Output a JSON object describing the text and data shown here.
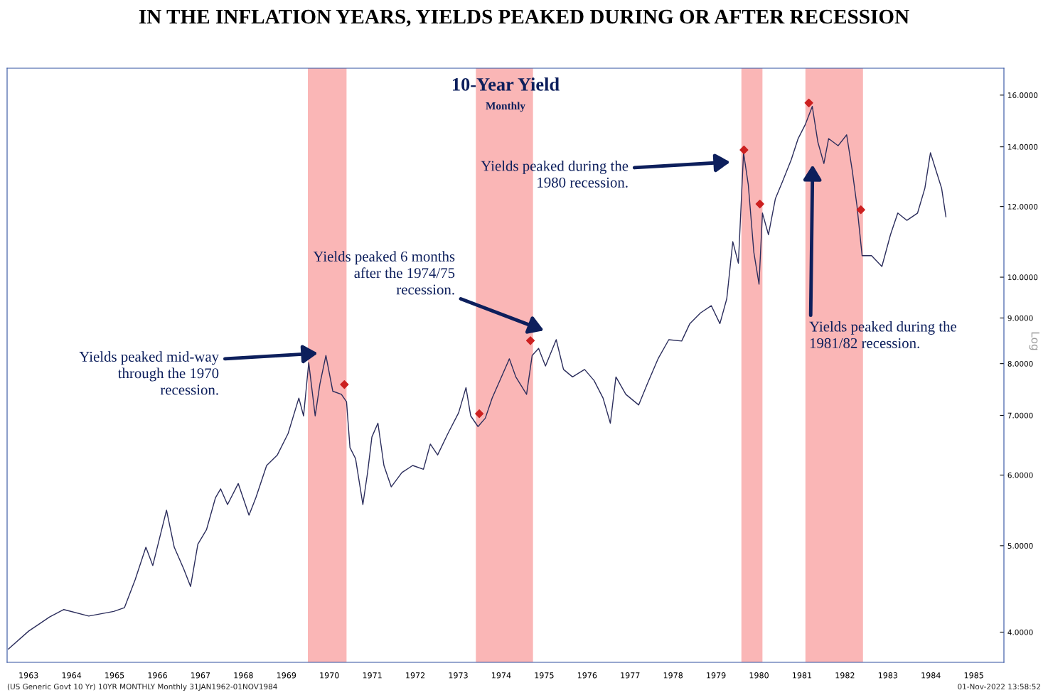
{
  "chart_data": {
    "type": "line",
    "title": "IN THE INFLATION YEARS, YIELDS PEAKED DURING OR AFTER RECESSION",
    "subtitle": "10-Year Yield",
    "log": "y",
    "grid": false,
    "xlim": [
      1963.0,
      1986.2
    ],
    "ylim": [
      3.7,
      17.15
    ],
    "xticks": [
      {
        "value": 1963.5,
        "label": "1963"
      },
      {
        "value": 1964.5,
        "label": "1964"
      },
      {
        "value": 1965.5,
        "label": "1965"
      },
      {
        "value": 1966.5,
        "label": "1966"
      },
      {
        "value": 1967.5,
        "label": "1967"
      },
      {
        "value": 1968.5,
        "label": "1968"
      },
      {
        "value": 1969.5,
        "label": "1969"
      },
      {
        "value": 1970.5,
        "label": "1970"
      },
      {
        "value": 1971.5,
        "label": "1971"
      },
      {
        "value": 1972.5,
        "label": "1972"
      },
      {
        "value": 1973.5,
        "label": "1973"
      },
      {
        "value": 1974.5,
        "label": "1974"
      },
      {
        "value": 1975.5,
        "label": "1975"
      },
      {
        "value": 1976.5,
        "label": "1976"
      },
      {
        "value": 1977.5,
        "label": "1977"
      },
      {
        "value": 1978.5,
        "label": "1978"
      },
      {
        "value": 1979.5,
        "label": "1979"
      },
      {
        "value": 1980.5,
        "label": "1980"
      },
      {
        "value": 1981.5,
        "label": "1981"
      },
      {
        "value": 1982.5,
        "label": "1982"
      },
      {
        "value": 1983.5,
        "label": "1983"
      },
      {
        "value": 1984.5,
        "label": "1984"
      },
      {
        "value": 1985.5,
        "label": "1985"
      }
    ],
    "yticks": [
      {
        "value": 4,
        "label": "4.0000"
      },
      {
        "value": 5,
        "label": "5.0000"
      },
      {
        "value": 6,
        "label": "6.0000"
      },
      {
        "value": 7,
        "label": "7.0000"
      },
      {
        "value": 8,
        "label": "8.0000"
      },
      {
        "value": 9,
        "label": "9.0000"
      },
      {
        "value": 10,
        "label": "10.0000"
      },
      {
        "value": 12,
        "label": "12.0000"
      },
      {
        "value": 14,
        "label": "14.0000"
      },
      {
        "value": 16,
        "label": "16.0000"
      }
    ],
    "bands": [
      {
        "axis": "x",
        "from": 1970.0,
        "to": 1970.9,
        "color": "#f9a9a9"
      },
      {
        "axis": "x",
        "from": 1973.91,
        "to": 1975.24,
        "color": "#f9a9a9"
      },
      {
        "axis": "x",
        "from": 1980.09,
        "to": 1980.58,
        "color": "#f9a9a9"
      },
      {
        "axis": "x",
        "from": 1981.58,
        "to": 1982.92,
        "color": "#f9a9a9"
      }
    ],
    "series": [
      {
        "color": "#2b2d5c",
        "x": [
          1963.03,
          1963.5,
          1963.99,
          1964.32,
          1964.9,
          1965.48,
          1965.73,
          1965.98,
          1966.23,
          1966.39,
          1966.71,
          1966.89,
          1967.11,
          1967.27,
          1967.44,
          1967.64,
          1967.85,
          1967.97,
          1968.13,
          1968.38,
          1968.63,
          1968.79,
          1969.04,
          1969.29,
          1969.54,
          1969.79,
          1969.9,
          1970.02,
          1970.17,
          1970.28,
          1970.42,
          1970.58,
          1970.78,
          1970.9,
          1970.98,
          1971.11,
          1971.28,
          1971.39,
          1971.49,
          1971.63,
          1971.77,
          1971.94,
          1972.19,
          1972.44,
          1972.69,
          1972.85,
          1973.02,
          1973.26,
          1973.51,
          1973.68,
          1973.79,
          1973.96,
          1974.13,
          1974.29,
          1974.47,
          1974.69,
          1974.84,
          1975.09,
          1975.22,
          1975.37,
          1975.53,
          1975.78,
          1975.95,
          1976.16,
          1976.44,
          1976.66,
          1976.87,
          1977.04,
          1977.17,
          1977.4,
          1977.7,
          1977.9,
          1978.15,
          1978.4,
          1978.7,
          1978.89,
          1979.14,
          1979.39,
          1979.59,
          1979.75,
          1979.89,
          1980.02,
          1980.14,
          1980.25,
          1980.38,
          1980.5,
          1980.58,
          1980.72,
          1980.88,
          1981.05,
          1981.25,
          1981.41,
          1981.58,
          1981.74,
          1981.87,
          1982.01,
          1982.12,
          1982.34,
          1982.54,
          1982.67,
          1982.78,
          1982.9,
          1983.12,
          1983.36,
          1983.56,
          1983.73,
          1983.94,
          1984.19,
          1984.36,
          1984.49,
          1984.62,
          1984.75,
          1984.85
        ],
        "values": [
          3.83,
          4.01,
          4.16,
          4.24,
          4.17,
          4.22,
          4.26,
          4.58,
          4.98,
          4.75,
          5.48,
          4.98,
          4.71,
          4.5,
          5.02,
          5.21,
          5.66,
          5.79,
          5.56,
          5.87,
          5.41,
          5.66,
          6.15,
          6.32,
          6.68,
          7.32,
          6.99,
          8.02,
          6.99,
          7.59,
          8.17,
          7.45,
          7.39,
          7.25,
          6.44,
          6.26,
          5.56,
          6.04,
          6.62,
          6.86,
          6.15,
          5.82,
          6.04,
          6.15,
          6.09,
          6.5,
          6.32,
          6.68,
          7.05,
          7.52,
          6.99,
          6.8,
          6.95,
          7.32,
          7.66,
          8.1,
          7.73,
          7.39,
          8.17,
          8.32,
          7.95,
          8.51,
          7.88,
          7.73,
          7.88,
          7.66,
          7.32,
          6.86,
          7.73,
          7.39,
          7.19,
          7.59,
          8.1,
          8.51,
          8.48,
          8.87,
          9.12,
          9.29,
          8.87,
          9.46,
          10.96,
          10.37,
          13.79,
          12.7,
          10.66,
          9.82,
          11.8,
          11.16,
          12.24,
          12.81,
          13.54,
          14.3,
          14.84,
          15.54,
          14.17,
          13.41,
          14.3,
          14.04,
          14.44,
          13.17,
          12.02,
          10.57,
          10.57,
          10.28,
          11.16,
          11.8,
          11.58,
          11.8,
          12.58,
          13.79,
          13.17,
          12.58,
          11.69
        ]
      },
      {
        "type": "scatter",
        "color": "#cc2020",
        "marker": "diamond",
        "x": [
          1970.85,
          1973.99,
          1975.18,
          1980.15,
          1980.52,
          1981.66,
          1982.87
        ],
        "values": [
          7.58,
          7.03,
          8.49,
          13.89,
          12.08,
          15.68,
          11.9
        ]
      }
    ],
    "annotations": [
      "Yields peaked mid-way\nthrough the 1970\nrecession.",
      "Yields peaked 6 months\nafter the 1974/75\nrecession.",
      "Yields peaked during the\n1980 recession.",
      "Yields peaked during the\n1981/82 recession.",
      "Monthly",
      "Log",
      "(US Generic Govt 10 Yr) 10YR MONTHLY Monthly 31JAN1962-01NOV1984",
      "01-Nov-2022 13:58:52"
    ]
  }
}
